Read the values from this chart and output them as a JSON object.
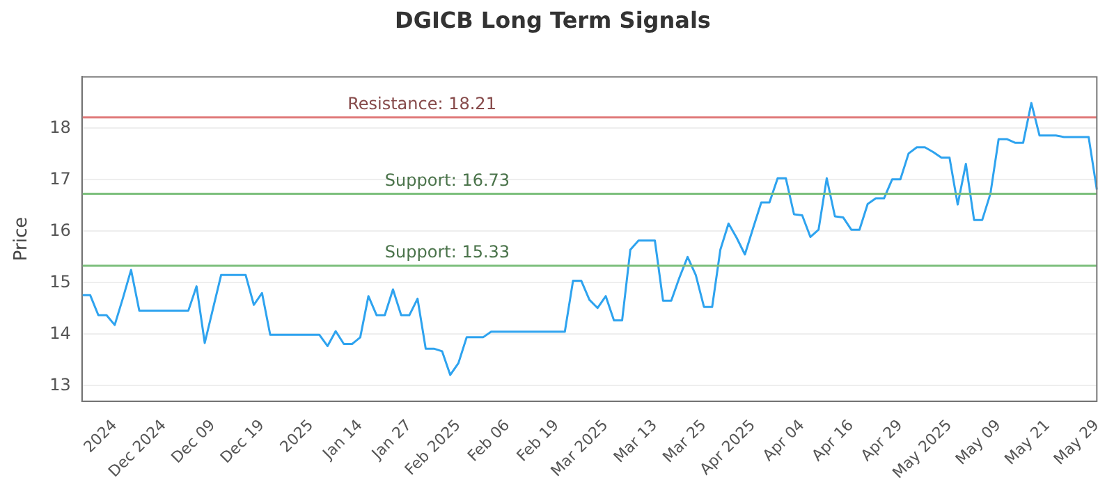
{
  "chart_data": {
    "type": "line",
    "title": "DGICB Long Term Signals",
    "ylabel": "Price",
    "color": "#2ea3ef",
    "grid": "y",
    "legend": false,
    "marker": "none",
    "line_style": "solid",
    "categories": [
      null,
      null,
      null,
      null,
      "2024",
      null,
      null,
      null,
      null,
      null,
      "Dec 2024",
      null,
      null,
      null,
      null,
      null,
      "Dec 09",
      null,
      null,
      null,
      null,
      null,
      "Dec 19",
      null,
      null,
      null,
      null,
      null,
      "2025",
      null,
      null,
      null,
      null,
      null,
      "Jan 14",
      null,
      null,
      null,
      null,
      null,
      "Jan 27",
      null,
      null,
      null,
      null,
      null,
      "Feb 2025",
      null,
      null,
      null,
      null,
      null,
      "Feb 06",
      null,
      null,
      null,
      null,
      null,
      "Feb 19",
      null,
      null,
      null,
      null,
      null,
      "Mar 2025",
      null,
      null,
      null,
      null,
      null,
      "Mar 13",
      null,
      null,
      null,
      null,
      null,
      "Mar 25",
      null,
      null,
      null,
      null,
      null,
      "Apr 2025",
      null,
      null,
      null,
      null,
      null,
      "Apr 04",
      null,
      null,
      null,
      null,
      null,
      "Apr 16",
      null,
      null,
      null,
      null,
      null,
      "Apr 29",
      null,
      null,
      null,
      null,
      null,
      "May 2025",
      null,
      null,
      null,
      null,
      null,
      "May 09",
      null,
      null,
      null,
      null,
      null,
      "May 21",
      null,
      null,
      null,
      null,
      null,
      "May 29"
    ],
    "values": [
      14.76,
      14.76,
      14.37,
      14.37,
      14.18,
      14.7,
      15.25,
      14.46,
      14.46,
      14.46,
      14.46,
      14.46,
      14.46,
      14.46,
      14.93,
      13.83,
      14.49,
      15.15,
      15.15,
      15.15,
      15.15,
      14.57,
      14.8,
      13.99,
      13.99,
      13.99,
      13.99,
      13.99,
      13.99,
      13.99,
      13.77,
      14.06,
      13.81,
      13.81,
      13.94,
      14.74,
      14.37,
      14.37,
      14.87,
      14.37,
      14.37,
      14.69,
      13.72,
      13.72,
      13.67,
      13.21,
      13.44,
      13.94,
      13.94,
      13.94,
      14.05,
      14.05,
      14.05,
      14.05,
      14.05,
      14.05,
      14.05,
      14.05,
      14.05,
      14.05,
      15.04,
      15.04,
      14.67,
      14.51,
      14.74,
      14.27,
      14.27,
      15.64,
      15.82,
      15.82,
      15.82,
      14.65,
      14.65,
      15.1,
      15.5,
      15.15,
      14.53,
      14.53,
      15.64,
      16.15,
      15.87,
      15.55,
      16.06,
      16.56,
      16.56,
      17.03,
      17.03,
      16.33,
      16.31,
      15.89,
      16.03,
      17.03,
      16.29,
      16.27,
      16.03,
      16.03,
      16.53,
      16.64,
      16.64,
      17.01,
      17.01,
      17.51,
      17.63,
      17.63,
      17.54,
      17.43,
      17.43,
      16.52,
      17.31,
      16.22,
      16.22,
      16.73,
      17.79,
      17.79,
      17.72,
      17.72,
      18.49,
      17.86,
      17.86,
      17.86,
      17.83,
      17.83,
      17.83,
      17.83,
      16.81
    ],
    "ylim": [
      12.7,
      19
    ],
    "yticks": [
      13,
      14,
      15,
      16,
      17,
      18
    ],
    "ref_lines": [
      {
        "axis": "y",
        "value": 18.21,
        "label": "Resistance: 18.21",
        "color": "#e07b7b"
      },
      {
        "axis": "y",
        "value": 16.73,
        "label": "Support: 16.73",
        "color": "#7cbf7c"
      },
      {
        "axis": "y",
        "value": 15.33,
        "label": "Support: 15.33",
        "color": "#7cbf7c"
      }
    ]
  }
}
